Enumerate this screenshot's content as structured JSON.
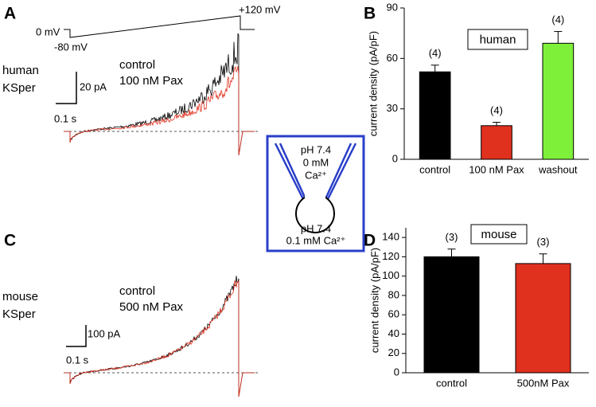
{
  "chart_data": [
    {
      "type": "trace",
      "panel": "A",
      "cell_label": [
        "human",
        "KSper"
      ],
      "series": [
        {
          "name": "control",
          "color": "#000000"
        },
        {
          "name": "100 nM Pax",
          "color": "#e0301e"
        }
      ],
      "scale_bar": {
        "y": "20 pA",
        "x": "0.1 s"
      },
      "protocol": {
        "start": "0 mV",
        "step": "-80 mV",
        "end": "+120 mV"
      }
    },
    {
      "type": "bar",
      "panel": "B",
      "title": "human",
      "ylabel": "current density (pA/pF)",
      "categories": [
        "control",
        "100 nM Pax",
        "washout"
      ],
      "values": [
        52,
        20,
        69
      ],
      "errors": [
        4,
        2,
        7
      ],
      "n_labels": [
        "(4)",
        "(4)",
        "(4)"
      ],
      "colors": [
        "#000000",
        "#e0301e",
        "#7ef03a"
      ],
      "colored_labels": true,
      "ylim": [
        0,
        90
      ],
      "yticks": [
        0,
        30,
        60,
        90
      ]
    },
    {
      "type": "trace",
      "panel": "C",
      "cell_label": [
        "mouse",
        "KSper"
      ],
      "series": [
        {
          "name": "control",
          "color": "#000000"
        },
        {
          "name": "500 nM Pax",
          "color": "#e0301e"
        }
      ],
      "scale_bar": {
        "y": "100 pA",
        "x": "0.1 s"
      }
    },
    {
      "type": "bar",
      "panel": "D",
      "title": "mouse",
      "ylabel": "current density (pA/pF)",
      "categories": [
        "control",
        "500nM Pax"
      ],
      "values": [
        120,
        113
      ],
      "errors": [
        8,
        10
      ],
      "n_labels": [
        "(3)",
        "(3)"
      ],
      "colors": [
        "#000000",
        "#e0301e"
      ],
      "colored_labels": false,
      "ylim": [
        0,
        150
      ],
      "yticks": [
        0,
        20,
        40,
        60,
        80,
        100,
        120,
        140
      ]
    }
  ],
  "diagram": {
    "top": [
      "pH 7.4",
      "0 mM",
      "Ca²⁺"
    ],
    "bottom": [
      "pH 7.4",
      "0.1 mM Ca²⁺"
    ]
  }
}
